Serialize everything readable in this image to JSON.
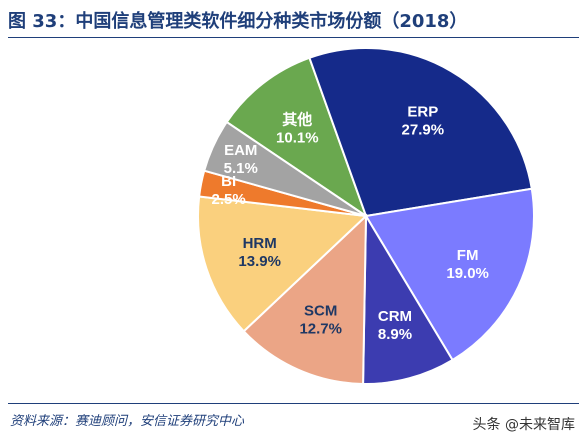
{
  "header": {
    "title": "图 33：中国信息管理类软件细分种类市场份额（2018）"
  },
  "footer": {
    "source": "资料来源：赛迪顾问，安信证券研究中心",
    "watermark": "头条 @未来智库"
  },
  "chart_data": {
    "type": "pie",
    "title": "图 33：中国信息管理类软件细分种类市场份额（2018）",
    "labels": [
      "ERP",
      "FM",
      "CRM",
      "SCM",
      "HRM",
      "BI",
      "EAM",
      "其他"
    ],
    "values": [
      27.9,
      19.0,
      8.9,
      12.7,
      13.9,
      2.5,
      5.1,
      10.1
    ],
    "value_labels": [
      "27.9%",
      "19.0%",
      "8.9%",
      "12.7%",
      "13.9%",
      "2.5%",
      "5.1%",
      "10.1%"
    ],
    "colors": [
      "#152a8a",
      "#7b7bff",
      "#3c3cb0",
      "#eba586",
      "#fad07e",
      "#ee7a2c",
      "#a3a3a3",
      "#6aa84f"
    ],
    "label_colors": [
      "#ffffff",
      "#ffffff",
      "#ffffff",
      "#1f3864",
      "#1f3864",
      "#ffffff",
      "#ffffff",
      "#ffffff"
    ],
    "start_slice": "其他",
    "direction": "clockwise"
  }
}
